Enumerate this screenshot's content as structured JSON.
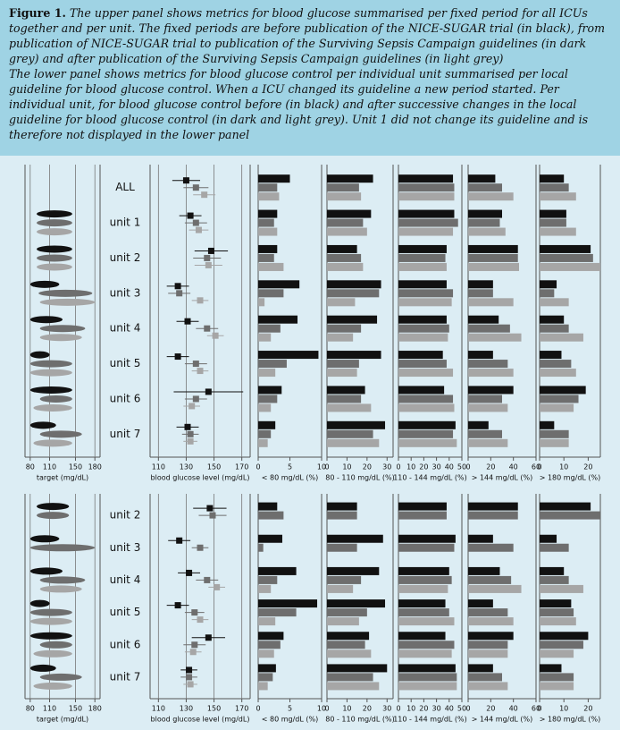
{
  "caption": {
    "label": "Figure 1.",
    "paragraphs": [
      "The upper panel shows metrics for blood glucose summarised per fixed period for all ICUs together and per unit. The fixed periods are before publication of the NICE-SUGAR trial (in black), from publication of NICE-SUGAR trial to publication of the Surviving Sepsis Campaign guidelines (in dark grey) and after publication of the Surviving Sepsis Campaign guidelines (in light grey)",
      "The lower panel shows metrics for blood glucose control per individual unit summarised per local guideline for blood glucose control. When a ICU changed its guideline a new period started. Per individual unit, for blood glucose control before (in black) and after successive changes in the local guideline for blood glucose control (in dark and light grey). Unit 1 did not change its guideline and is therefore not displayed in the lower panel"
    ]
  },
  "chart_data": [
    {
      "type": "panel",
      "categories": [
        "ALL",
        "unit 1",
        "unit 2",
        "unit 3",
        "unit 4",
        "unit 5",
        "unit 6",
        "unit 7"
      ],
      "subplots": [
        {
          "type": "range",
          "xlabel": "target (mg/dL)",
          "xlim": [
            72,
            188
          ],
          "xticks": [
            80,
            110,
            150,
            180
          ],
          "grid": true,
          "series": [
            {
              "color": "#111111",
              "low": [
                null,
                90,
                90,
                80,
                80,
                80,
                80,
                80
              ],
              "high": [
                null,
                145,
                145,
                125,
                130,
                110,
                145,
                120
              ]
            },
            {
              "color": "#6e6e6e",
              "low": [
                null,
                90,
                90,
                93,
                95,
                80,
                95,
                95
              ],
              "high": [
                null,
                145,
                145,
                176,
                165,
                145,
                145,
                160
              ]
            },
            {
              "color": "#a6a6a6",
              "low": [
                null,
                90,
                90,
                95,
                95,
                80,
                85,
                85
              ],
              "high": [
                null,
                145,
                145,
                180,
                160,
                145,
                145,
                145
              ]
            }
          ]
        },
        {
          "type": "dot",
          "xlabel": "blood glucose level (mg/dL)",
          "xlim": [
            104,
            176
          ],
          "xticks": [
            110,
            130,
            150,
            170
          ],
          "grid": true,
          "series": [
            {
              "color": "#111111",
              "values": [
                130,
                133,
                148,
                124,
                131,
                124,
                146,
                131
              ],
              "errors": [
                10,
                8,
                12,
                8,
                8,
                8,
                25,
                8
              ]
            },
            {
              "color": "#6e6e6e",
              "values": [
                137,
                137,
                145,
                125,
                145,
                137,
                137,
                133
              ],
              "errors": [
                9,
                8,
                10,
                8,
                8,
                8,
                8,
                6
              ]
            },
            {
              "color": "#a6a6a6",
              "values": [
                143,
                139,
                146,
                140,
                151,
                140,
                134,
                133
              ],
              "errors": [
                8,
                7,
                10,
                6,
                6,
                6,
                6,
                5
              ]
            }
          ]
        },
        {
          "type": "bar",
          "xlabel": "< 80 mg/dL (%)",
          "xlim": [
            0,
            10
          ],
          "xticks": [
            0,
            5,
            10
          ],
          "grid": false,
          "series": [
            {
              "color": "#111111",
              "values": [
                5,
                3,
                3,
                6.5,
                6.2,
                9.5,
                3.7,
                2.7
              ]
            },
            {
              "color": "#6e6e6e",
              "values": [
                3,
                2.5,
                2.5,
                4,
                3.5,
                4.5,
                3,
                2
              ]
            },
            {
              "color": "#a6a6a6",
              "values": [
                3.3,
                3,
                4,
                1,
                2,
                2.7,
                2,
                1.5
              ]
            }
          ]
        },
        {
          "type": "bar",
          "xlabel": "80 - 110 mg/dL (%)",
          "xlim": [
            0,
            33
          ],
          "xticks": [
            0,
            10,
            20,
            30
          ],
          "grid": false,
          "series": [
            {
              "color": "#111111",
              "values": [
                23,
                22,
                15,
                27,
                25,
                27,
                19,
                29
              ]
            },
            {
              "color": "#6e6e6e",
              "values": [
                16,
                18,
                17,
                26,
                17,
                16,
                17,
                23
              ]
            },
            {
              "color": "#a6a6a6",
              "values": [
                17,
                20,
                18,
                14,
                13,
                15,
                22,
                26
              ]
            }
          ]
        },
        {
          "type": "bar",
          "xlabel": "110 - 144 mg/dL (%)",
          "xlim": [
            0,
            50
          ],
          "xticks": [
            0,
            10,
            20,
            30,
            40,
            50
          ],
          "grid": false,
          "series": [
            {
              "color": "#111111",
              "values": [
                43,
                44,
                38,
                38,
                38,
                35,
                36,
                45
              ]
            },
            {
              "color": "#6e6e6e",
              "values": [
                44,
                47,
                37,
                43,
                40,
                38,
                43,
                43
              ]
            },
            {
              "color": "#a6a6a6",
              "values": [
                44,
                43,
                38,
                42,
                39,
                43,
                44,
                46
              ]
            }
          ]
        },
        {
          "type": "bar",
          "xlabel": "> 144 mg/dL (%)",
          "xlim": [
            0,
            60
          ],
          "xticks": [
            0,
            20,
            40,
            60
          ],
          "grid": false,
          "series": [
            {
              "color": "#111111",
              "values": [
                24,
                30,
                44,
                22,
                27,
                22,
                40,
                18
              ]
            },
            {
              "color": "#6e6e6e",
              "values": [
                30,
                28,
                44,
                22,
                37,
                35,
                30,
                30
              ]
            },
            {
              "color": "#a6a6a6",
              "values": [
                40,
                33,
                45,
                40,
                47,
                40,
                35,
                35
              ]
            }
          ]
        },
        {
          "type": "bar",
          "xlabel": "> 180 mg/dL (%)",
          "xlim": [
            0,
            25
          ],
          "xticks": [
            0,
            10,
            20
          ],
          "grid": false,
          "series": [
            {
              "color": "#111111",
              "values": [
                10,
                11,
                21,
                7,
                10,
                9,
                19,
                6
              ]
            },
            {
              "color": "#6e6e6e",
              "values": [
                12,
                11,
                22,
                6,
                12,
                13,
                16,
                12
              ]
            },
            {
              "color": "#a6a6a6",
              "values": [
                15,
                15,
                25,
                12,
                18,
                15,
                14,
                12
              ]
            }
          ]
        }
      ]
    },
    {
      "type": "panel",
      "categories": [
        "unit 2",
        "unit 3",
        "unit 4",
        "unit 5",
        "unit 6",
        "unit 7"
      ],
      "subplots": [
        {
          "type": "range",
          "xlabel": "target (mg/dL)",
          "xlim": [
            72,
            188
          ],
          "xticks": [
            80,
            110,
            150,
            180
          ],
          "grid": true,
          "series": [
            {
              "color": "#111111",
              "low": [
                90,
                80,
                80,
                80,
                80,
                80
              ],
              "high": [
                140,
                125,
                130,
                110,
                145,
                120
              ]
            },
            {
              "color": "#6e6e6e",
              "low": [
                90,
                80,
                95,
                80,
                95,
                95
              ],
              "high": [
                140,
                180,
                165,
                145,
                145,
                160
              ]
            },
            {
              "color": "#a6a6a6",
              "low": [
                null,
                null,
                95,
                80,
                85,
                85
              ],
              "high": [
                null,
                null,
                160,
                145,
                145,
                145
              ]
            }
          ]
        },
        {
          "type": "dot",
          "xlabel": "blood glucose level (mg/dL)",
          "xlim": [
            104,
            176
          ],
          "xticks": [
            110,
            130,
            150,
            170
          ],
          "grid": true,
          "series": [
            {
              "color": "#111111",
              "values": [
                147,
                125,
                132,
                124,
                146,
                132
              ],
              "errors": [
                12,
                8,
                8,
                8,
                12,
                6
              ]
            },
            {
              "color": "#6e6e6e",
              "values": [
                149,
                140,
                145,
                136,
                136,
                132
              ],
              "errors": [
                10,
                6,
                8,
                7,
                8,
                6
              ]
            },
            {
              "color": "#a6a6a6",
              "values": [
                null,
                null,
                152,
                140,
                135,
                133
              ],
              "errors": [
                null,
                null,
                6,
                6,
                6,
                5
              ]
            }
          ]
        },
        {
          "type": "bar",
          "xlabel": "< 80 mg/dL (%)",
          "xlim": [
            0,
            10
          ],
          "xticks": [
            0,
            5,
            10
          ],
          "grid": false,
          "series": [
            {
              "color": "#111111",
              "values": [
                3,
                3.8,
                6,
                9.3,
                4,
                2.8
              ]
            },
            {
              "color": "#6e6e6e",
              "values": [
                4,
                0.8,
                3,
                6,
                3.5,
                2.3
              ]
            },
            {
              "color": "#a6a6a6",
              "values": [
                null,
                null,
                2,
                2.7,
                2.5,
                1.5
              ]
            }
          ]
        },
        {
          "type": "bar",
          "xlabel": "80 - 110 mg/dL (%)",
          "xlim": [
            0,
            33
          ],
          "xticks": [
            0,
            10,
            20,
            30
          ],
          "grid": false,
          "series": [
            {
              "color": "#111111",
              "values": [
                15,
                28,
                26,
                29,
                21,
                30
              ]
            },
            {
              "color": "#6e6e6e",
              "values": [
                15,
                15,
                17,
                20,
                19,
                23
              ]
            },
            {
              "color": "#a6a6a6",
              "values": [
                null,
                null,
                13,
                16,
                22,
                26
              ]
            }
          ]
        },
        {
          "type": "bar",
          "xlabel": "110 - 144 mg/dL (%)",
          "xlim": [
            0,
            50
          ],
          "xticks": [
            0,
            10,
            20,
            30,
            40,
            50
          ],
          "grid": false,
          "series": [
            {
              "color": "#111111",
              "values": [
                38,
                45,
                40,
                37,
                37,
                45
              ]
            },
            {
              "color": "#6e6e6e",
              "values": [
                38,
                44,
                42,
                40,
                44,
                46
              ]
            },
            {
              "color": "#a6a6a6",
              "values": [
                null,
                null,
                39,
                44,
                42,
                46
              ]
            }
          ]
        },
        {
          "type": "bar",
          "xlabel": "> 144 mg/dL (%)",
          "xlim": [
            0,
            60
          ],
          "xticks": [
            0,
            20,
            40,
            60
          ],
          "grid": false,
          "series": [
            {
              "color": "#111111",
              "values": [
                44,
                22,
                28,
                22,
                40,
                22
              ]
            },
            {
              "color": "#6e6e6e",
              "values": [
                44,
                40,
                38,
                35,
                35,
                30
              ]
            },
            {
              "color": "#a6a6a6",
              "values": [
                null,
                null,
                47,
                40,
                35,
                35
              ]
            }
          ]
        },
        {
          "type": "bar",
          "xlabel": "> 180 mg/dL (%)",
          "xlim": [
            0,
            25
          ],
          "xticks": [
            0,
            10,
            20
          ],
          "grid": false,
          "series": [
            {
              "color": "#111111",
              "values": [
                21,
                7,
                10,
                13,
                20,
                9
              ]
            },
            {
              "color": "#6e6e6e",
              "values": [
                25,
                12,
                12,
                14,
                18,
                14
              ]
            },
            {
              "color": "#a6a6a6",
              "values": [
                null,
                null,
                18,
                15,
                14,
                14
              ]
            }
          ]
        }
      ]
    }
  ]
}
